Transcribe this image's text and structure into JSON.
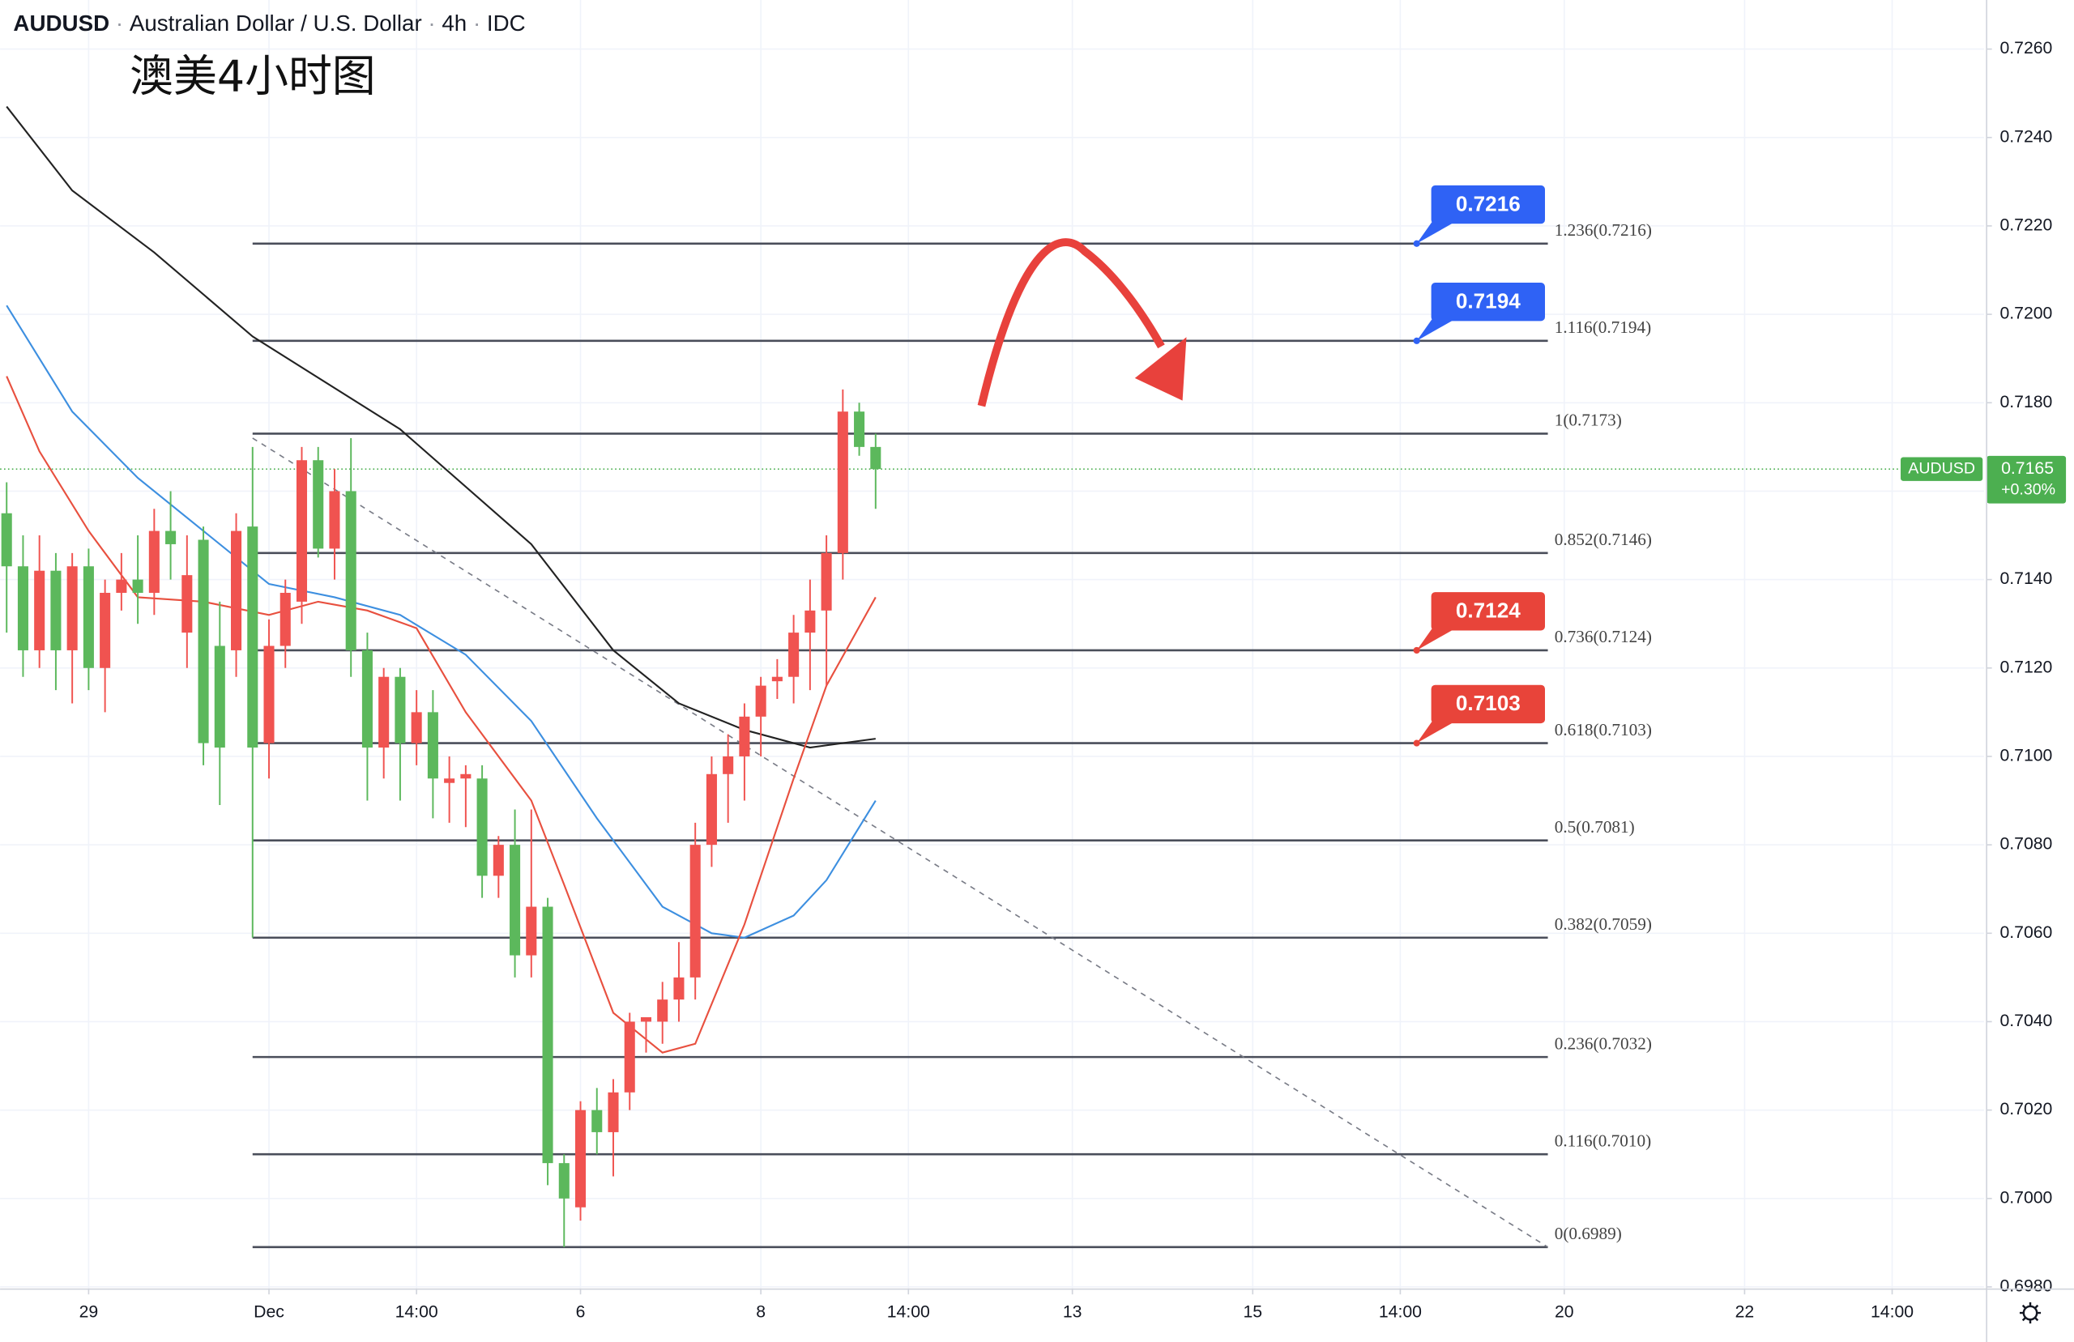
{
  "chart_data": {
    "type": "candlestick",
    "header": {
      "symbol": "AUDUSD",
      "name": "Australian Dollar / U.S. Dollar",
      "interval": "4h",
      "source": "IDC"
    },
    "annotation": "澳美4小时图",
    "up_color": "#f05350",
    "down_color": "#5cb85c",
    "grid": true,
    "ylim": [
      0.69795,
      0.72711
    ],
    "yticks": [
      {
        "value": 0.726,
        "label": "0.7260"
      },
      {
        "value": 0.724,
        "label": "0.7240"
      },
      {
        "value": 0.722,
        "label": "0.7220"
      },
      {
        "value": 0.72,
        "label": "0.7200"
      },
      {
        "value": 0.718,
        "label": "0.7180"
      },
      {
        "value": 0.716,
        "label": "0.7160"
      },
      {
        "value": 0.714,
        "label": "0.7140"
      },
      {
        "value": 0.712,
        "label": "0.7120"
      },
      {
        "value": 0.71,
        "label": "0.7100"
      },
      {
        "value": 0.708,
        "label": "0.7080"
      },
      {
        "value": 0.706,
        "label": "0.7060"
      },
      {
        "value": 0.704,
        "label": "0.7040"
      },
      {
        "value": 0.702,
        "label": "0.7020"
      },
      {
        "value": 0.7,
        "label": "0.7000"
      },
      {
        "value": 0.698,
        "label": "0.6980"
      }
    ],
    "xlim": [
      -0.4,
      120.6
    ],
    "xticks": [
      {
        "value": 5,
        "label": "29"
      },
      {
        "value": 16,
        "label": "Dec"
      },
      {
        "value": 25,
        "label": "14:00"
      },
      {
        "value": 35,
        "label": "6"
      },
      {
        "value": 46,
        "label": "8"
      },
      {
        "value": 55,
        "label": "14:00"
      },
      {
        "value": 65,
        "label": "13"
      },
      {
        "value": 76,
        "label": "15"
      },
      {
        "value": 85,
        "label": "14:00"
      },
      {
        "value": 95,
        "label": "20"
      },
      {
        "value": 106,
        "label": "22"
      },
      {
        "value": 115,
        "label": "14:00"
      }
    ],
    "ohlc": {
      "open": [
        0.7155,
        0.7143,
        0.7124,
        0.7142,
        0.7124,
        0.7143,
        0.712,
        0.7137,
        0.714,
        0.7137,
        0.7151,
        0.7128,
        0.7149,
        0.7125,
        0.7124,
        0.7152,
        0.7103,
        0.7125,
        0.7135,
        0.7167,
        0.7147,
        0.716,
        0.7124,
        0.7102,
        0.7118,
        0.7103,
        0.711,
        0.7094,
        0.7095,
        0.7095,
        0.7073,
        0.708,
        0.7055,
        0.7066,
        0.7008,
        0.6998,
        0.702,
        0.7015,
        0.7024,
        0.704,
        0.704,
        0.7045,
        0.705,
        0.708,
        0.7096,
        0.71,
        0.7109,
        0.7117,
        0.7118,
        0.7128,
        0.7133,
        0.7146,
        0.7178,
        0.717
      ],
      "high": [
        0.7162,
        0.715,
        0.715,
        0.7146,
        0.7146,
        0.7147,
        0.714,
        0.7146,
        0.715,
        0.7156,
        0.716,
        0.715,
        0.7152,
        0.7135,
        0.7155,
        0.717,
        0.7131,
        0.714,
        0.717,
        0.717,
        0.7165,
        0.7172,
        0.7128,
        0.712,
        0.712,
        0.7115,
        0.7115,
        0.71,
        0.7098,
        0.7098,
        0.7082,
        0.7088,
        0.7088,
        0.7068,
        0.701,
        0.7022,
        0.7025,
        0.7027,
        0.7042,
        0.7041,
        0.7049,
        0.7058,
        0.7085,
        0.71,
        0.7105,
        0.7112,
        0.7118,
        0.7122,
        0.7132,
        0.714,
        0.715,
        0.7183,
        0.718,
        0.7173
      ],
      "low": [
        0.7128,
        0.7118,
        0.712,
        0.7115,
        0.7112,
        0.7115,
        0.711,
        0.7133,
        0.713,
        0.7132,
        0.714,
        0.712,
        0.7098,
        0.7089,
        0.7118,
        0.7059,
        0.7095,
        0.712,
        0.713,
        0.7145,
        0.714,
        0.7118,
        0.709,
        0.7095,
        0.709,
        0.7098,
        0.7086,
        0.7085,
        0.7084,
        0.7068,
        0.7068,
        0.705,
        0.705,
        0.7003,
        0.6989,
        0.6995,
        0.701,
        0.7005,
        0.702,
        0.7033,
        0.7035,
        0.704,
        0.7045,
        0.7075,
        0.7085,
        0.709,
        0.71,
        0.7113,
        0.7112,
        0.7115,
        0.7116,
        0.714,
        0.7168,
        0.7156
      ],
      "close": [
        0.7143,
        0.7124,
        0.7142,
        0.7124,
        0.7143,
        0.712,
        0.7137,
        0.714,
        0.7137,
        0.7151,
        0.7148,
        0.7141,
        0.7103,
        0.7102,
        0.7151,
        0.7102,
        0.7125,
        0.7137,
        0.7167,
        0.7147,
        0.716,
        0.7124,
        0.7102,
        0.7118,
        0.7103,
        0.711,
        0.7095,
        0.7095,
        0.7096,
        0.7073,
        0.708,
        0.7055,
        0.7066,
        0.7008,
        0.7,
        0.702,
        0.7015,
        0.7024,
        0.704,
        0.7041,
        0.7045,
        0.705,
        0.708,
        0.7096,
        0.71,
        0.7109,
        0.7116,
        0.7118,
        0.7128,
        0.7133,
        0.7146,
        0.7178,
        0.717,
        0.7165
      ]
    },
    "lines": [
      {
        "color": "#222222",
        "x": [
          0,
          4,
          9,
          15,
          24,
          32,
          37,
          41,
          45,
          49,
          53
        ],
        "values": [
          0.7247,
          0.7228,
          0.7214,
          0.7195,
          0.7174,
          0.7148,
          0.7124,
          0.7112,
          0.7106,
          0.7102,
          0.7104
        ]
      },
      {
        "color": "#3d8fe0",
        "x": [
          0,
          4,
          8,
          12,
          16,
          20,
          24,
          28,
          32,
          36,
          40,
          43,
          45,
          48,
          50,
          53
        ],
        "values": [
          0.7202,
          0.7178,
          0.7163,
          0.7151,
          0.7139,
          0.7136,
          0.7132,
          0.7123,
          0.7108,
          0.7086,
          0.7066,
          0.706,
          0.7059,
          0.7064,
          0.7072,
          0.709
        ]
      },
      {
        "color": "#e8503f",
        "x": [
          0,
          2,
          5,
          8,
          12,
          16,
          19,
          22,
          25,
          28,
          32,
          34,
          37,
          40,
          42,
          45,
          48,
          50,
          53
        ],
        "values": [
          0.7186,
          0.7169,
          0.7151,
          0.7136,
          0.7135,
          0.7132,
          0.7135,
          0.7133,
          0.7129,
          0.711,
          0.709,
          0.7071,
          0.7042,
          0.7033,
          0.7035,
          0.7062,
          0.7095,
          0.7116,
          0.7136
        ]
      }
    ],
    "trendline": {
      "x": [
        15,
        94
      ],
      "values": [
        0.7172,
        0.6989
      ]
    },
    "fib_x": [
      15,
      94
    ],
    "fib_levels": [
      {
        "value": 0.7216,
        "label": "1.236(0.7216)"
      },
      {
        "value": 0.7194,
        "label": "1.116(0.7194)"
      },
      {
        "value": 0.7173,
        "label": "1(0.7173)"
      },
      {
        "value": 0.7146,
        "label": "0.852(0.7146)"
      },
      {
        "value": 0.7124,
        "label": "0.736(0.7124)"
      },
      {
        "value": 0.7103,
        "label": "0.618(0.7103)"
      },
      {
        "value": 0.7081,
        "label": "0.5(0.7081)"
      },
      {
        "value": 0.7059,
        "label": "0.382(0.7059)"
      },
      {
        "value": 0.7032,
        "label": "0.236(0.7032)"
      },
      {
        "value": 0.701,
        "label": "0.116(0.7010)"
      },
      {
        "value": 0.6989,
        "label": "0(0.6989)"
      }
    ],
    "price_tag_x": 86,
    "price_tags": [
      {
        "value": 0.7216,
        "color": "#2f62f5"
      },
      {
        "value": 0.7194,
        "color": "#2f62f5"
      },
      {
        "value": 0.7124,
        "color": "#e8443a"
      },
      {
        "value": 0.7103,
        "color": "#e8443a"
      }
    ],
    "last": {
      "symbol": "AUDUSD",
      "price": 0.7165,
      "change": {
        "value": 0.3,
        "label": "+0.30%"
      },
      "color": "#4caf50"
    }
  }
}
